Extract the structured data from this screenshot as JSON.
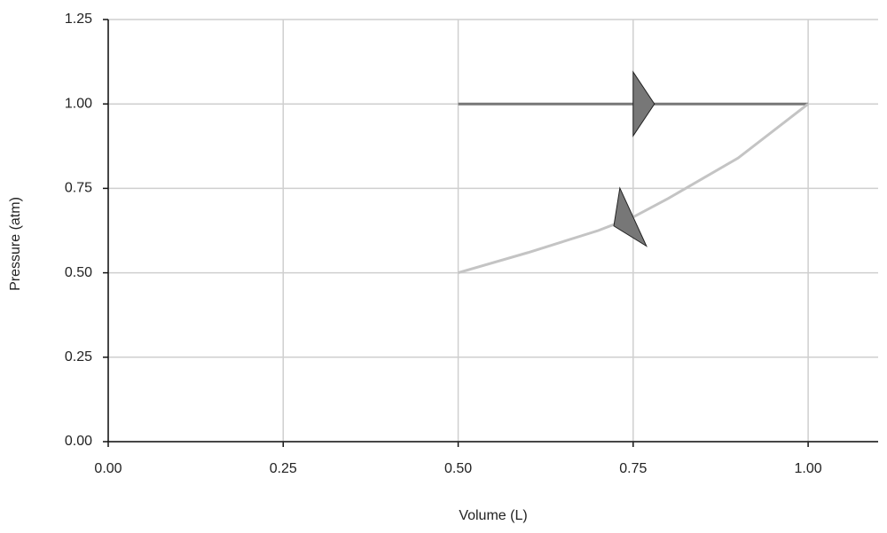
{
  "chart_data": {
    "type": "line",
    "x_label": "Volume (L)",
    "y_label": "Pressure (atm)",
    "series": [
      {
        "color": "#777777",
        "x": [
          0.5,
          0.75,
          1.0
        ],
        "values": [
          1.0,
          1.0,
          1.0
        ]
      },
      {
        "color": "#c4c4c4",
        "x": [
          1.0,
          0.9,
          0.8,
          0.75,
          0.7,
          0.6,
          0.5
        ],
        "values": [
          1.0,
          0.84,
          0.72,
          0.665,
          0.625,
          0.56,
          0.5
        ]
      }
    ],
    "xlim": [
      0,
      1.1
    ],
    "ylim": [
      0,
      1.25
    ],
    "xticks": [
      {
        "value": 0,
        "label": "0.00"
      },
      {
        "value": 0.25,
        "label": "0.25"
      },
      {
        "value": 0.5,
        "label": "0.50"
      },
      {
        "value": 0.75,
        "label": "0.75"
      },
      {
        "value": 1,
        "label": "1.00"
      }
    ],
    "yticks": [
      {
        "value": 0,
        "label": "0.00"
      },
      {
        "value": 0.25,
        "label": "0.25"
      },
      {
        "value": 0.5,
        "label": "0.50"
      },
      {
        "value": 0.75,
        "label": "0.75"
      },
      {
        "value": 1,
        "label": "1.00"
      },
      {
        "value": 1.25,
        "label": "1.25"
      }
    ],
    "grid": true
  }
}
